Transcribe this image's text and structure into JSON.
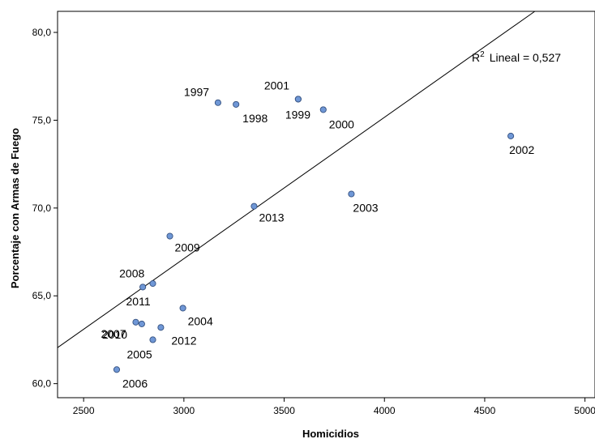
{
  "chart_data": {
    "type": "scatter",
    "title": "",
    "xlabel": "Homicidios",
    "ylabel": "Porcentaje con Armas de Fuego",
    "xlim": [
      2370,
      5050
    ],
    "ylim": [
      59.2,
      81.2
    ],
    "x_ticks": [
      2500,
      3000,
      3500,
      4000,
      4500,
      5000
    ],
    "x_tick_labels": [
      "2500",
      "3000",
      "3500",
      "4000",
      "4500",
      "5000"
    ],
    "y_ticks": [
      60,
      65,
      70,
      75,
      80
    ],
    "y_tick_labels": [
      "60,0",
      "65,0",
      "70,0",
      "75,0",
      "80,0"
    ],
    "grid": false,
    "point_color": "#6f97d6",
    "point_stroke": "#34507f",
    "points": [
      {
        "label": "1997",
        "x": 3170,
        "y": 76.0
      },
      {
        "label": "1998",
        "x": 3260,
        "y": 75.9
      },
      {
        "label": "1999",
        "x": 3570,
        "y": 76.2
      },
      {
        "label": "2000",
        "x": 3695,
        "y": 75.6
      },
      {
        "label": "2001",
        "x": 3570,
        "y": 76.2
      },
      {
        "label": "2002",
        "x": 4630,
        "y": 74.1
      },
      {
        "label": "2003",
        "x": 3835,
        "y": 70.8
      },
      {
        "label": "2004",
        "x": 2995,
        "y": 64.3
      },
      {
        "label": "2005",
        "x": 2845,
        "y": 62.5
      },
      {
        "label": "2006",
        "x": 2665,
        "y": 60.8
      },
      {
        "label": "2007",
        "x": 2760,
        "y": 63.5
      },
      {
        "label": "2008",
        "x": 2795,
        "y": 65.5
      },
      {
        "label": "2009",
        "x": 2930,
        "y": 68.4
      },
      {
        "label": "2010",
        "x": 2790,
        "y": 63.4
      },
      {
        "label": "2011",
        "x": 2845,
        "y": 65.7
      },
      {
        "label": "2012",
        "x": 2885,
        "y": 63.2
      },
      {
        "label": "2013",
        "x": 3350,
        "y": 70.1
      }
    ],
    "fit_line": {
      "type": "linear",
      "x_start": 2370,
      "y_start": 62.05,
      "x_end": 4750,
      "y_end": 81.2,
      "annotation_r": "R",
      "annotation_sup": "2",
      "annotation_text": "Lineal = 0,527"
    }
  }
}
